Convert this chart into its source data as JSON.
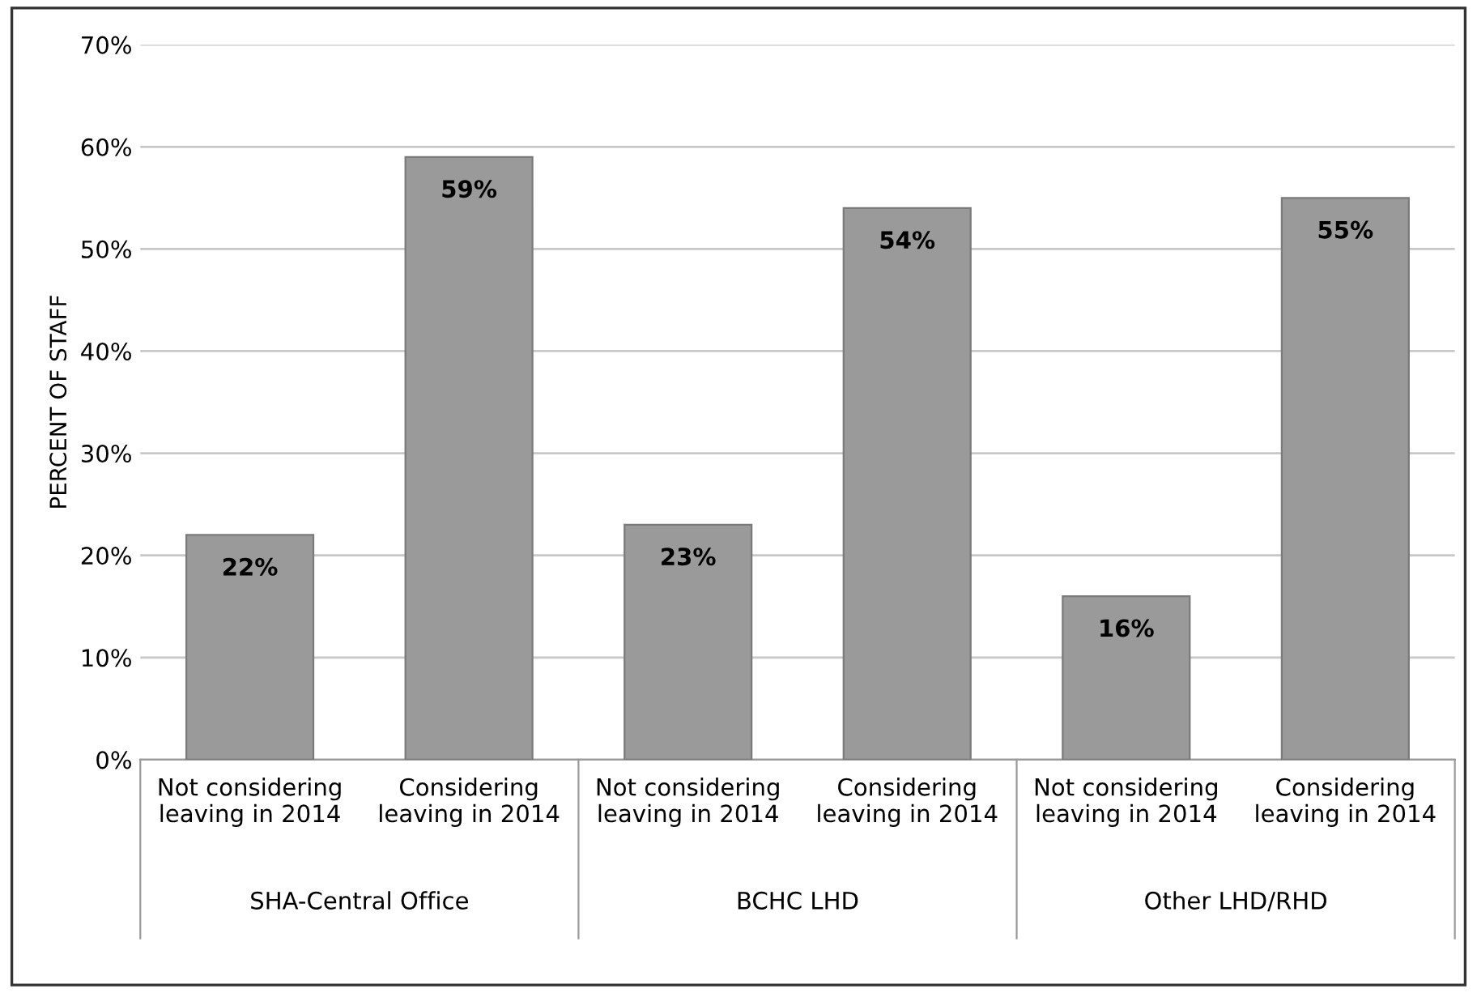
{
  "chart_data": {
    "type": "bar",
    "ylabel": "PERCENT OF STAFF",
    "categories": [
      "Not considering\nleaving in 2014",
      "Considering\nleaving in 2014",
      "Not considering\nleaving in 2014",
      "Considering\nleaving in 2014",
      "Not considering\nleaving in 2014",
      "Considering\nleaving in 2014"
    ],
    "values": [
      22,
      59,
      23,
      54,
      16,
      55
    ],
    "value_labels": [
      "22%",
      "59%",
      "23%",
      "54%",
      "16%",
      "55%"
    ],
    "color": "#9a9a9a",
    "ylim": [
      0,
      70
    ],
    "yticks": [
      {
        "value": 0,
        "label": "0%"
      },
      {
        "value": 10,
        "label": "10%"
      },
      {
        "value": 20,
        "label": "20%"
      },
      {
        "value": 30,
        "label": "30%"
      },
      {
        "value": 40,
        "label": "40%"
      },
      {
        "value": 50,
        "label": "50%"
      },
      {
        "value": 60,
        "label": "60%"
      },
      {
        "value": 70,
        "label": "70%"
      }
    ],
    "grid": "y",
    "annotations": [
      "SHA-Central Office",
      "BCHC LHD",
      "Other LHD/RHD"
    ]
  }
}
